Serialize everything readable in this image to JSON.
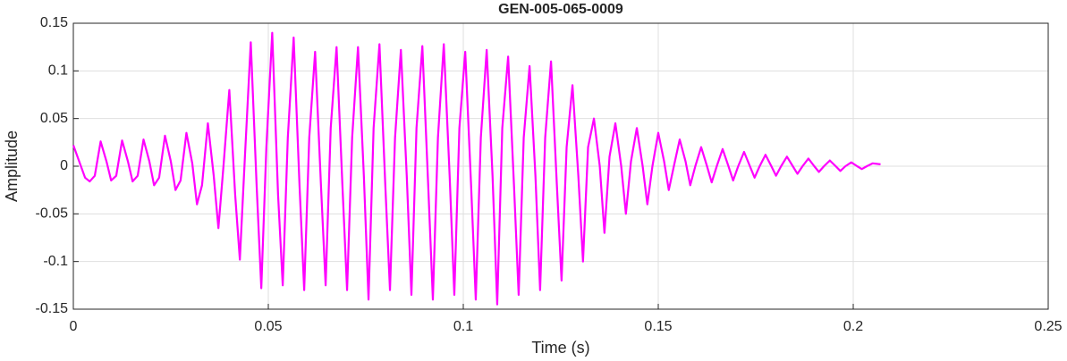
{
  "chart_data": {
    "type": "line",
    "title": "GEN-005-065-0009",
    "xlabel": "Time (s)",
    "ylabel": "Amplitude",
    "xlim": [
      0,
      0.25
    ],
    "xticks": [
      0,
      0.05,
      0.1,
      0.15,
      0.2,
      0.25
    ],
    "ylim": [
      -0.15,
      0.15
    ],
    "yticks": [
      -0.15,
      -0.1,
      -0.05,
      0,
      0.05,
      0.1,
      0.15
    ],
    "grid": true,
    "color": "#ff00ff",
    "x": [
      0,
      0.0015,
      0.003,
      0.0042,
      0.0055,
      0.007,
      0.0085,
      0.0097,
      0.011,
      0.0125,
      0.014,
      0.0152,
      0.0165,
      0.018,
      0.0195,
      0.0207,
      0.022,
      0.0235,
      0.025,
      0.0262,
      0.0275,
      0.029,
      0.0305,
      0.0317,
      0.033,
      0.0345,
      0.036,
      0.0372,
      0.0385,
      0.04,
      0.0415,
      0.0427,
      0.044,
      0.0455,
      0.047,
      0.0482,
      0.0495,
      0.051,
      0.0525,
      0.0537,
      0.055,
      0.0565,
      0.058,
      0.0592,
      0.0605,
      0.062,
      0.0635,
      0.0647,
      0.066,
      0.0675,
      0.069,
      0.0702,
      0.0715,
      0.073,
      0.0745,
      0.0757,
      0.077,
      0.0785,
      0.08,
      0.0812,
      0.0825,
      0.084,
      0.0855,
      0.0867,
      0.088,
      0.0895,
      0.091,
      0.0922,
      0.0935,
      0.095,
      0.0965,
      0.0977,
      0.099,
      0.1005,
      0.102,
      0.1032,
      0.1045,
      0.106,
      0.1075,
      0.1087,
      0.11,
      0.1115,
      0.113,
      0.1142,
      0.1155,
      0.117,
      0.1185,
      0.1197,
      0.121,
      0.1225,
      0.124,
      0.1252,
      0.1265,
      0.128,
      0.1295,
      0.1307,
      0.132,
      0.1335,
      0.135,
      0.1362,
      0.1375,
      0.139,
      0.1405,
      0.1417,
      0.143,
      0.1445,
      0.146,
      0.1472,
      0.1485,
      0.15,
      0.1515,
      0.1527,
      0.154,
      0.1555,
      0.157,
      0.1582,
      0.1595,
      0.161,
      0.1625,
      0.1637,
      0.165,
      0.1665,
      0.168,
      0.1692,
      0.1705,
      0.172,
      0.1735,
      0.1747,
      0.176,
      0.1775,
      0.179,
      0.1802,
      0.1815,
      0.183,
      0.1845,
      0.1857,
      0.187,
      0.1885,
      0.19,
      0.1912,
      0.1925,
      0.194,
      0.1955,
      0.1967,
      0.198,
      0.1995,
      0.201,
      0.2022,
      0.2035,
      0.205,
      0.207
    ],
    "values": [
      0.022,
      0.005,
      -0.012,
      -0.016,
      -0.01,
      0.026,
      0.005,
      -0.015,
      -0.01,
      0.027,
      0.005,
      -0.016,
      -0.01,
      0.028,
      0.005,
      -0.02,
      -0.012,
      0.032,
      0.005,
      -0.025,
      -0.015,
      0.035,
      0.003,
      -0.04,
      -0.02,
      0.045,
      -0.01,
      -0.065,
      0,
      0.08,
      -0.03,
      -0.098,
      0.01,
      0.13,
      -0.02,
      -0.128,
      0.02,
      0.14,
      -0.03,
      -0.125,
      0.03,
      0.135,
      -0.02,
      -0.13,
      0.03,
      0.12,
      -0.02,
      -0.125,
      0.04,
      0.125,
      -0.02,
      -0.13,
      0.03,
      0.125,
      -0.01,
      -0.14,
      0.04,
      0.128,
      -0.02,
      -0.13,
      0.03,
      0.122,
      -0.01,
      -0.135,
      0.04,
      0.126,
      -0.02,
      -0.14,
      0.03,
      0.128,
      -0.01,
      -0.135,
      0.04,
      0.12,
      -0.02,
      -0.14,
      0.03,
      0.122,
      -0.01,
      -0.145,
      0.04,
      0.115,
      -0.02,
      -0.135,
      0.03,
      0.105,
      -0.01,
      -0.13,
      0.03,
      0.11,
      -0.02,
      -0.12,
      0.02,
      0.085,
      -0.01,
      -0.1,
      0.02,
      0.05,
      0,
      -0.07,
      0.01,
      0.045,
      0,
      -0.05,
      0.005,
      0.04,
      0,
      -0.04,
      0,
      0.035,
      0.005,
      -0.025,
      0,
      0.028,
      0.005,
      -0.02,
      0,
      0.02,
      0,
      -0.017,
      0,
      0.018,
      0,
      -0.015,
      0,
      0.015,
      0,
      -0.012,
      0,
      0.012,
      0,
      -0.01,
      0,
      0.01,
      0,
      -0.008,
      0,
      0.008,
      0,
      -0.006,
      0,
      0.006,
      0,
      -0.005,
      0,
      0.004,
      0,
      -0.003,
      0,
      0.003,
      0.002
    ]
  }
}
